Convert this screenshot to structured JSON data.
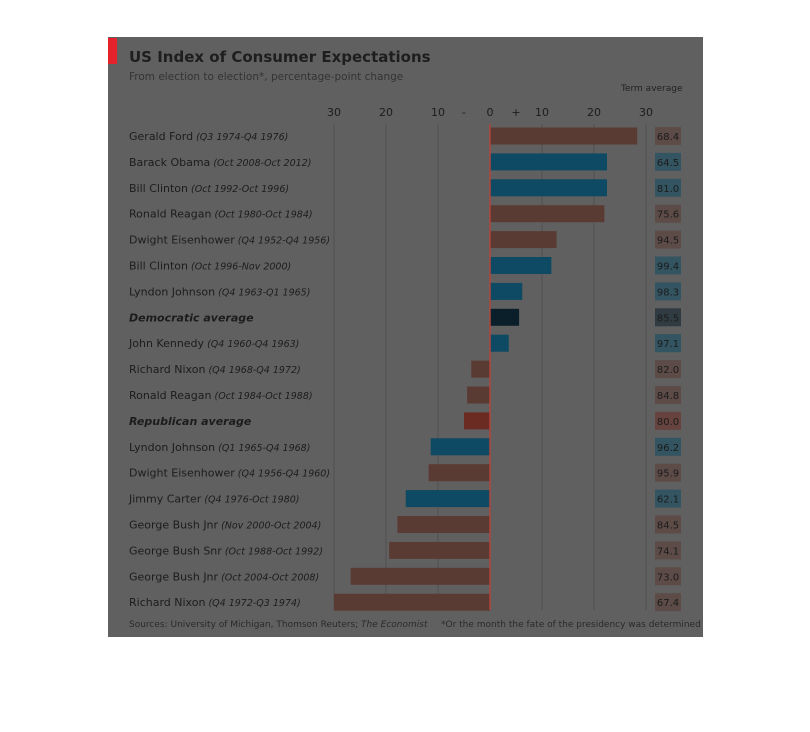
{
  "header": {
    "title": "US Index of Consumer Expectations",
    "subtitle": "From election to election*, percentage-point change",
    "term_average_label": "Term average"
  },
  "footer": {
    "sources_prefix": "Sources: University of Michigan, Thomson Reuters; ",
    "sources_italic": "The Economist",
    "footnote": "*Or the month the fate of the presidency was determined"
  },
  "colors": {
    "democrat": "#0e4a63",
    "republican": "#5a3b33",
    "democratic_average": "#0a1f2a",
    "republican_average": "#6b2b23",
    "baseline": "#b0453a",
    "gridline": "#505050",
    "background": "#606060"
  },
  "chart_data": {
    "type": "bar",
    "orientation": "horizontal",
    "title": "US Index of Consumer Expectations",
    "subtitle": "From election to election*, percentage-point change",
    "xlim": [
      -30,
      30
    ],
    "x_ticks": [
      "30",
      "20",
      "10",
      "-",
      "0",
      "+",
      "10",
      "20",
      "30"
    ],
    "x_tick_values": [
      -30,
      -20,
      -10,
      -5,
      0,
      5,
      10,
      20,
      30
    ],
    "grid": true,
    "secondary_column": "Term average",
    "rows": [
      {
        "president": "Gerald Ford",
        "term": "(Q3 1974-Q4 1976)",
        "value": 28.3,
        "term_average": "68.4",
        "party": "republican"
      },
      {
        "president": "Barack Obama",
        "term": "(Oct 2008-Oct 2012)",
        "value": 22.5,
        "term_average": "64.5",
        "party": "democrat"
      },
      {
        "president": "Bill Clinton",
        "term": "(Oct 1992-Oct 1996)",
        "value": 22.5,
        "term_average": "81.0",
        "party": "democrat"
      },
      {
        "president": "Ronald Reagan",
        "term": "(Oct 1980-Oct 1984)",
        "value": 22.0,
        "term_average": "75.6",
        "party": "republican"
      },
      {
        "president": "Dwight Eisenhower",
        "term": "(Q4 1952-Q4 1956)",
        "value": 12.8,
        "term_average": "94.5",
        "party": "republican"
      },
      {
        "president": "Bill Clinton",
        "term": "(Oct 1996-Nov 2000)",
        "value": 11.8,
        "term_average": "99.4",
        "party": "democrat"
      },
      {
        "president": "Lyndon Johnson",
        "term": "(Q4 1963-Q1 1965)",
        "value": 6.2,
        "term_average": "98.3",
        "party": "democrat"
      },
      {
        "president": "Democratic average",
        "term": "",
        "value": 5.6,
        "term_average": "85.5",
        "party": "democratic_average"
      },
      {
        "president": "John Kennedy",
        "term": "(Q4 1960-Q4 1963)",
        "value": 3.6,
        "term_average": "97.1",
        "party": "democrat"
      },
      {
        "president": "Richard Nixon",
        "term": "(Q4 1968-Q4 1972)",
        "value": -3.6,
        "term_average": "82.0",
        "party": "republican"
      },
      {
        "president": "Ronald Reagan",
        "term": "(Oct 1984-Oct 1988)",
        "value": -4.4,
        "term_average": "84.8",
        "party": "republican"
      },
      {
        "president": "Republican average",
        "term": "",
        "value": -5.0,
        "term_average": "80.0",
        "party": "republican_average"
      },
      {
        "president": "Lyndon Johnson",
        "term": "(Q1 1965-Q4 1968)",
        "value": -11.4,
        "term_average": "96.2",
        "party": "democrat"
      },
      {
        "president": "Dwight Eisenhower",
        "term": "(Q4 1956-Q4 1960)",
        "value": -11.8,
        "term_average": "95.9",
        "party": "republican"
      },
      {
        "president": "Jimmy Carter",
        "term": "(Q4 1976-Oct 1980)",
        "value": -16.2,
        "term_average": "62.1",
        "party": "democrat"
      },
      {
        "president": "George Bush Jnr",
        "term": "(Nov 2000-Oct 2004)",
        "value": -17.8,
        "term_average": "84.5",
        "party": "republican"
      },
      {
        "president": "George Bush Snr",
        "term": "(Oct 1988-Oct 1992)",
        "value": -19.4,
        "term_average": "74.1",
        "party": "republican"
      },
      {
        "president": "George Bush Jnr",
        "term": "(Oct 2004-Oct 2008)",
        "value": -26.8,
        "term_average": "73.0",
        "party": "republican"
      },
      {
        "president": "Richard Nixon",
        "term": "(Q4 1972-Q3 1974)",
        "value": -30.0,
        "term_average": "67.4",
        "party": "republican"
      }
    ]
  }
}
